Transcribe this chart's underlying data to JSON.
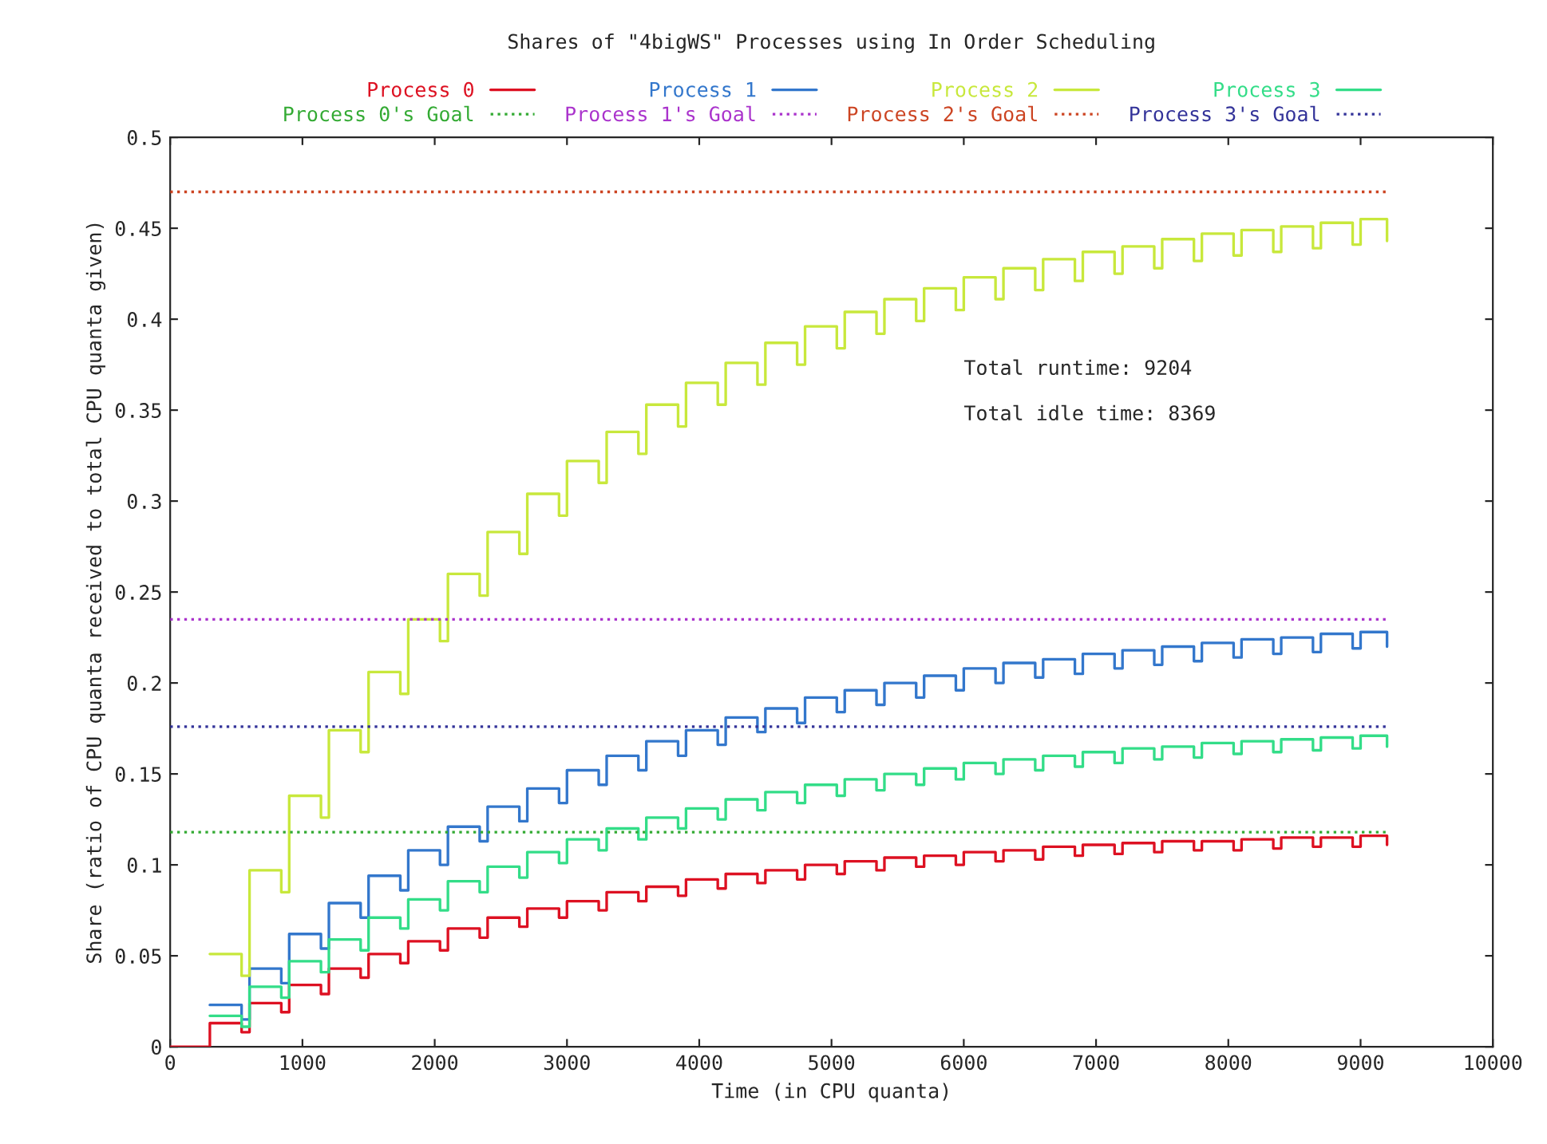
{
  "chart_data": {
    "type": "step",
    "title": "Shares of \"4bigWS\" Processes using In Order Scheduling",
    "xlabel": "Time (in CPU quanta)",
    "ylabel": "Share (ratio of CPU quanta received to total CPU quanta given)",
    "x": [
      0,
      300,
      540,
      600,
      840,
      900,
      1140,
      1200,
      1440,
      1500,
      1740,
      1800,
      2040,
      2100,
      2340,
      2400,
      2640,
      2700,
      2940,
      3000,
      3240,
      3300,
      3540,
      3600,
      3840,
      3900,
      4140,
      4200,
      4440,
      4500,
      4740,
      4800,
      5040,
      5100,
      5340,
      5400,
      5640,
      5700,
      5940,
      6000,
      6240,
      6300,
      6540,
      6600,
      6840,
      6900,
      7140,
      7200,
      7440,
      7500,
      7740,
      7800,
      8040,
      8100,
      8340,
      8400,
      8640,
      8700,
      8940,
      9000,
      9200
    ],
    "series": [
      {
        "name": "Process 0",
        "color": "#dd1122",
        "values": [
          0,
          0.013,
          0.008,
          0.024,
          0.019,
          0.034,
          0.029,
          0.043,
          0.038,
          0.051,
          0.046,
          0.058,
          0.053,
          0.065,
          0.06,
          0.071,
          0.066,
          0.076,
          0.071,
          0.08,
          0.075,
          0.085,
          0.08,
          0.088,
          0.083,
          0.092,
          0.087,
          0.095,
          0.09,
          0.097,
          0.092,
          0.1,
          0.095,
          0.102,
          0.097,
          0.104,
          0.099,
          0.105,
          0.1,
          0.107,
          0.102,
          0.108,
          0.103,
          0.11,
          0.105,
          0.111,
          0.106,
          0.112,
          0.107,
          0.113,
          0.108,
          0.113,
          0.108,
          0.114,
          0.109,
          0.115,
          0.11,
          0.115,
          0.11,
          0.116,
          0.111
        ]
      },
      {
        "name": "Process 1",
        "color": "#3377cc",
        "values": [
          null,
          0.023,
          0.015,
          0.043,
          0.035,
          0.062,
          0.054,
          0.079,
          0.071,
          0.094,
          0.086,
          0.108,
          0.1,
          0.121,
          0.113,
          0.132,
          0.124,
          0.142,
          0.134,
          0.152,
          0.144,
          0.16,
          0.152,
          0.168,
          0.16,
          0.174,
          0.166,
          0.181,
          0.173,
          0.186,
          0.178,
          0.192,
          0.184,
          0.196,
          0.188,
          0.2,
          0.192,
          0.204,
          0.196,
          0.208,
          0.2,
          0.211,
          0.203,
          0.213,
          0.205,
          0.216,
          0.208,
          0.218,
          0.21,
          0.22,
          0.212,
          0.222,
          0.214,
          0.224,
          0.216,
          0.225,
          0.217,
          0.227,
          0.219,
          0.228,
          0.22
        ]
      },
      {
        "name": "Process 2",
        "color": "#c8e83c",
        "values": [
          null,
          0.051,
          0.039,
          0.097,
          0.085,
          0.138,
          0.126,
          0.174,
          0.162,
          0.206,
          0.194,
          0.235,
          0.223,
          0.26,
          0.248,
          0.283,
          0.271,
          0.304,
          0.292,
          0.322,
          0.31,
          0.338,
          0.326,
          0.353,
          0.341,
          0.365,
          0.353,
          0.376,
          0.364,
          0.387,
          0.375,
          0.396,
          0.384,
          0.404,
          0.392,
          0.411,
          0.399,
          0.417,
          0.405,
          0.423,
          0.411,
          0.428,
          0.416,
          0.433,
          0.421,
          0.437,
          0.425,
          0.44,
          0.428,
          0.444,
          0.432,
          0.447,
          0.435,
          0.449,
          0.437,
          0.451,
          0.439,
          0.453,
          0.441,
          0.455,
          0.443
        ]
      },
      {
        "name": "Process 3",
        "color": "#33dd88",
        "values": [
          null,
          0.017,
          0.011,
          0.033,
          0.027,
          0.047,
          0.041,
          0.059,
          0.053,
          0.071,
          0.065,
          0.081,
          0.075,
          0.091,
          0.085,
          0.099,
          0.093,
          0.107,
          0.101,
          0.114,
          0.108,
          0.12,
          0.114,
          0.126,
          0.12,
          0.131,
          0.125,
          0.136,
          0.13,
          0.14,
          0.134,
          0.144,
          0.138,
          0.147,
          0.141,
          0.15,
          0.144,
          0.153,
          0.147,
          0.156,
          0.15,
          0.158,
          0.152,
          0.16,
          0.154,
          0.162,
          0.156,
          0.164,
          0.158,
          0.165,
          0.159,
          0.167,
          0.161,
          0.168,
          0.162,
          0.169,
          0.163,
          0.17,
          0.164,
          0.171,
          0.165
        ]
      }
    ],
    "ref_lines": [
      {
        "axis": "y",
        "value": 0.118,
        "label": "Process 0's Goal",
        "color": "#33aa33",
        "line_style": "dotted"
      },
      {
        "axis": "y",
        "value": 0.235,
        "label": "Process 1's Goal",
        "color": "#aa33cc",
        "line_style": "dotted"
      },
      {
        "axis": "y",
        "value": 0.47,
        "label": "Process 2's Goal",
        "color": "#cc4422",
        "line_style": "dotted"
      },
      {
        "axis": "y",
        "value": 0.176,
        "label": "Process 3's Goal",
        "color": "#333399",
        "line_style": "dotted"
      }
    ],
    "annotations": [
      "Total runtime: 9204",
      "Total idle time: 8369"
    ],
    "xlim": [
      0,
      10000
    ],
    "ylim": [
      0,
      0.5
    ],
    "xticks": [
      0,
      1000,
      2000,
      3000,
      4000,
      5000,
      6000,
      7000,
      8000,
      9000,
      10000
    ],
    "yticks": [
      0,
      0.05,
      0.1,
      0.15,
      0.2,
      0.25,
      0.3,
      0.35,
      0.4,
      0.45,
      0.5
    ],
    "grid": false,
    "legend": "top"
  }
}
